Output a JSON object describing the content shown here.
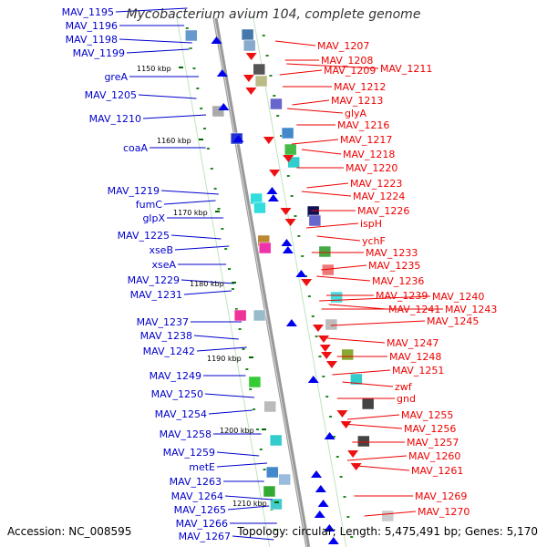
{
  "title": "Mycobacterium avium 104, complete genome",
  "accession": "Accession: NC_008595",
  "summary": "Topology: circular; Length: 5,475,491 bp; Genes: 5,170",
  "left_labels": [
    "MAV_1195",
    "MAV_1196",
    "MAV_1198",
    "MAV_1199",
    "greA",
    "MAV_1205",
    "MAV_1210",
    "coaA",
    "MAV_1219",
    "fumC",
    "glpX",
    "MAV_1225",
    "xseB",
    "xseA",
    "MAV_1229",
    "MAV_1231",
    "MAV_1237",
    "MAV_1238",
    "MAV_1242",
    "MAV_1249",
    "MAV_1250",
    "MAV_1254",
    "MAV_1258",
    "MAV_1259",
    "metE",
    "MAV_1263",
    "MAV_1264",
    "MAV_1265",
    "MAV_1266",
    "MAV_1267"
  ],
  "right_labels": [
    "MAV_1207",
    "MAV_1208",
    "MAV_1209",
    "MAV_1211",
    "MAV_1212",
    "MAV_1213",
    "glyA",
    "MAV_1216",
    "MAV_1217",
    "MAV_1218",
    "MAV_1220",
    "MAV_1223",
    "MAV_1224",
    "MAV_1226",
    "ispH",
    "ychF",
    "MAV_1233",
    "MAV_1235",
    "MAV_1236",
    "MAV_1239",
    "MAV_1240",
    "MAV_1241",
    "MAV_1243",
    "MAV_1245",
    "MAV_1247",
    "MAV_1248",
    "MAV_1251",
    "zwf",
    "gnd",
    "MAV_1255",
    "MAV_1256",
    "MAV_1257",
    "MAV_1260",
    "MAV_1261",
    "MAV_1269",
    "MAV_1270"
  ],
  "ruler_labels": [
    "1150 kbp",
    "1160 kbp",
    "1170 kbp",
    "1180 kbp",
    "1190 kbp",
    "1200 kbp",
    "1210 kbp"
  ],
  "colors": {
    "left_label": "#0000cc",
    "right_label": "#ee0000",
    "backbone": "#999999",
    "tick": "#228822",
    "forward": "#0000ee",
    "reverse": "#ee1111"
  }
}
